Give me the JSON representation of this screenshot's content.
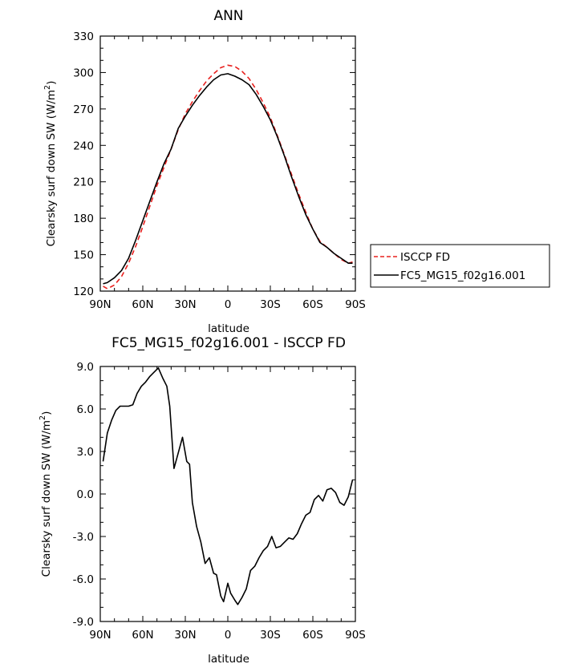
{
  "chart_data": [
    {
      "type": "line",
      "title": "ANN",
      "xlabel": "latitude",
      "ylabel_main": "Clearsky surf down SW (W/m",
      "ylabel_sup": "2",
      "ylabel_tail": ")",
      "xlim": [
        90,
        -90
      ],
      "ylim": [
        120,
        330
      ],
      "xticks": [
        90,
        60,
        30,
        0,
        -30,
        -60,
        -90
      ],
      "xtick_labels": [
        "90N",
        "60N",
        "30N",
        "0",
        "30S",
        "60S",
        "90S"
      ],
      "yticks": [
        120,
        150,
        180,
        210,
        240,
        270,
        300,
        330
      ],
      "ytick_labels": [
        "120",
        "150",
        "180",
        "210",
        "240",
        "270",
        "300",
        "330"
      ],
      "grid": false,
      "legend_position": "right, outside plot",
      "legend": [
        "ISCCP FD",
        "FC5_MG15_f02g16.001"
      ],
      "series": [
        {
          "name": "ISCCP FD",
          "color": "#e8201e",
          "dash": "dashed",
          "x": [
            88,
            85,
            80,
            75,
            70,
            65,
            60,
            55,
            50,
            45,
            40,
            35,
            30,
            25,
            20,
            15,
            10,
            5,
            0,
            -5,
            -10,
            -15,
            -20,
            -25,
            -30,
            -35,
            -40,
            -45,
            -50,
            -55,
            -60,
            -65,
            -70,
            -75,
            -80,
            -85,
            -88
          ],
          "y": [
            124,
            122,
            125,
            132,
            143,
            157,
            173,
            190,
            207,
            222,
            237,
            253,
            266,
            276,
            285,
            293,
            299,
            304,
            306,
            305,
            301,
            295,
            286,
            275,
            263,
            248,
            232,
            216,
            200,
            185,
            171,
            161,
            156,
            151,
            146,
            143,
            144
          ]
        },
        {
          "name": "FC5_MG15_f02g16.001",
          "color": "#000000",
          "dash": "solid",
          "x": [
            88,
            85,
            80,
            75,
            70,
            65,
            60,
            55,
            50,
            45,
            40,
            35,
            30,
            25,
            20,
            15,
            10,
            5,
            0,
            -5,
            -10,
            -15,
            -20,
            -25,
            -30,
            -35,
            -40,
            -45,
            -50,
            -55,
            -60,
            -65,
            -70,
            -75,
            -80,
            -85,
            -88
          ],
          "y": [
            126,
            127,
            131,
            137,
            147,
            162,
            178,
            194,
            210,
            225,
            237,
            254,
            264,
            273,
            281,
            288,
            294,
            298,
            299,
            297,
            294,
            290,
            282,
            272,
            261,
            247,
            231,
            214,
            198,
            183,
            171,
            160,
            156,
            151,
            147,
            143,
            143
          ]
        }
      ]
    },
    {
      "type": "line",
      "title": "FC5_MG15_f02g16.001 - ISCCP FD",
      "xlabel": "latitude",
      "ylabel_main": "Clearsky surf down SW (W/m",
      "ylabel_sup": "2",
      "ylabel_tail": ")",
      "xlim": [
        90,
        -90
      ],
      "ylim": [
        -9,
        9
      ],
      "xticks": [
        90,
        60,
        30,
        0,
        -30,
        -60,
        -90
      ],
      "xtick_labels": [
        "90N",
        "60N",
        "30N",
        "0",
        "30S",
        "60S",
        "90S"
      ],
      "yticks": [
        -9,
        -6,
        -3,
        0,
        3,
        6,
        9
      ],
      "ytick_labels": [
        "-9.0",
        "-6.0",
        "-3.0",
        "0.0",
        "3.0",
        "6.0",
        "9.0"
      ],
      "grid": false,
      "series": [
        {
          "color": "#000000",
          "dash": "solid",
          "x": [
            88,
            85,
            82,
            79,
            76,
            73,
            70,
            67,
            64,
            61,
            58,
            55,
            52,
            49,
            46,
            43,
            41,
            38,
            35,
            32,
            29,
            27,
            25,
            22,
            19,
            16,
            13,
            10,
            8,
            5,
            3,
            0,
            -2,
            -5,
            -7,
            -10,
            -13,
            -16,
            -19,
            -22,
            -25,
            -28,
            -31,
            -34,
            -37,
            -40,
            -43,
            -46,
            -49,
            -52,
            -55,
            -58,
            -61,
            -64,
            -67,
            -70,
            -73,
            -76,
            -79,
            -82,
            -85,
            -88
          ],
          "y": [
            2.3,
            4.3,
            5.2,
            5.9,
            6.2,
            6.2,
            6.2,
            6.3,
            7.1,
            7.6,
            7.9,
            8.3,
            8.6,
            8.9,
            8.2,
            7.6,
            6.2,
            1.8,
            2.9,
            4.0,
            2.3,
            2.1,
            -0.6,
            -2.3,
            -3.4,
            -4.9,
            -4.5,
            -5.6,
            -5.7,
            -7.2,
            -7.6,
            -6.3,
            -7.0,
            -7.5,
            -7.8,
            -7.3,
            -6.7,
            -5.4,
            -5.1,
            -4.5,
            -4.0,
            -3.7,
            -3.0,
            -3.8,
            -3.7,
            -3.4,
            -3.1,
            -3.2,
            -2.8,
            -2.1,
            -1.5,
            -1.3,
            -0.4,
            -0.1,
            -0.5,
            0.3,
            0.4,
            0.1,
            -0.6,
            -0.8,
            -0.2,
            1.0
          ]
        }
      ]
    }
  ]
}
